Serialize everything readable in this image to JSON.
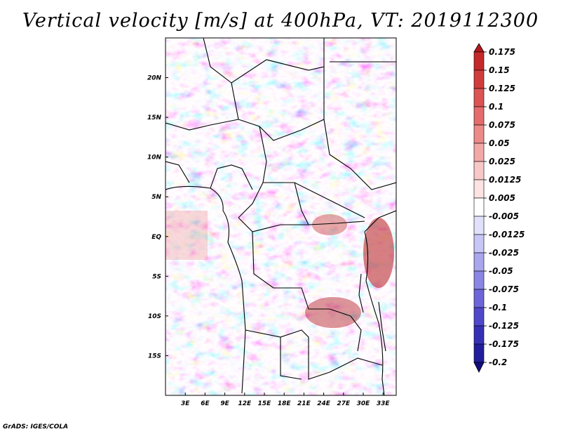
{
  "title": "Vertical velocity [m/s] at 400hPa, VT: 2019112300",
  "footer": "GrADS: IGES/COLA",
  "chart_data": {
    "type": "heatmap",
    "title": "Vertical velocity [m/s] at 400hPa, VT: 2019112300",
    "xlabel": "",
    "ylabel": "",
    "x_ticks": [
      "3E",
      "6E",
      "9E",
      "12E",
      "15E",
      "18E",
      "21E",
      "24E",
      "27E",
      "30E",
      "33E"
    ],
    "x_tick_values": [
      3,
      6,
      9,
      12,
      15,
      18,
      21,
      24,
      27,
      30,
      33
    ],
    "y_ticks": [
      "20N",
      "15N",
      "10N",
      "5N",
      "EQ",
      "5S",
      "10S",
      "15S"
    ],
    "y_tick_values": [
      20,
      15,
      10,
      5,
      0,
      -5,
      -10,
      -15
    ],
    "xlim": [
      0,
      35
    ],
    "ylim": [
      -20,
      25
    ],
    "colorbar": {
      "labels": [
        "0.175",
        "0.15",
        "0.125",
        "0.1",
        "0.075",
        "0.05",
        "0.025",
        "0.0125",
        "0.005",
        "-0.005",
        "-0.0125",
        "-0.025",
        "-0.05",
        "-0.075",
        "-0.1",
        "-0.125",
        "-0.175",
        "-0.2"
      ],
      "colors": [
        "#b4191e",
        "#c42a2a",
        "#d13d3d",
        "#dc5454",
        "#e46c6c",
        "#ec8a8a",
        "#f3a8a8",
        "#f8c8c8",
        "#fde3e3",
        "#ffffff",
        "#e2e1fb",
        "#c8c6f6",
        "#a9a6ee",
        "#8a86e4",
        "#6d66d9",
        "#4f48cb",
        "#3630b7",
        "#211d9c",
        "#120d7f"
      ]
    },
    "colors": {
      "positive": "#c0282d",
      "negative": "#3b36c4",
      "neutral": "#ffffff"
    }
  }
}
